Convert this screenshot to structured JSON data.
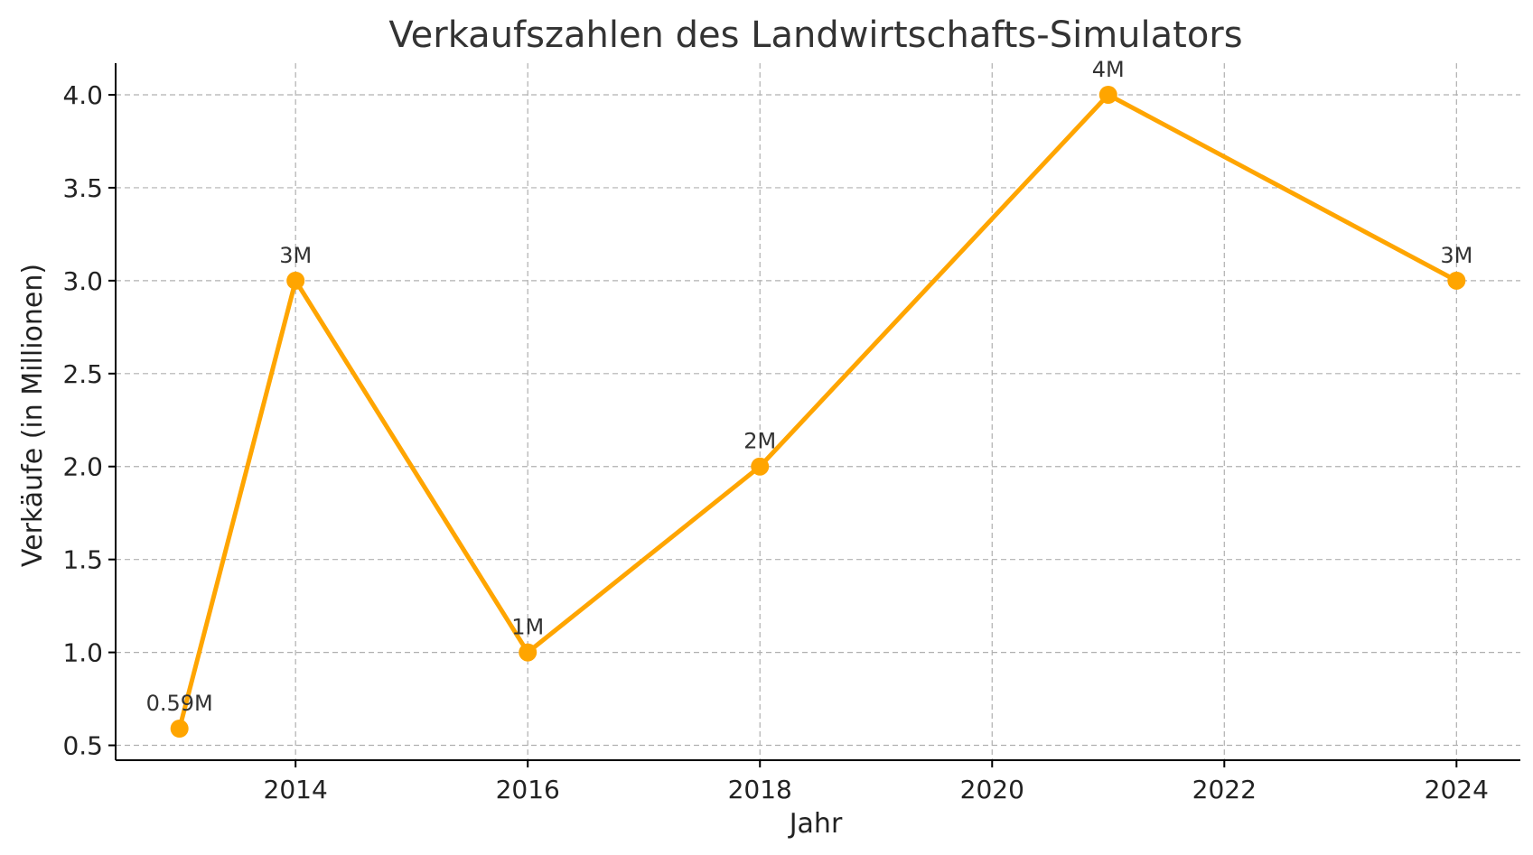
{
  "chart_data": {
    "type": "line",
    "title": "Verkaufszahlen des Landwirtschafts-Simulators",
    "xlabel": "Jahr",
    "ylabel": "Verkäufe (in Millionen)",
    "x": [
      2013,
      2014,
      2016,
      2018,
      2021,
      2024
    ],
    "series": [
      {
        "values": [
          0.59,
          3,
          1,
          2,
          4,
          3
        ],
        "color": "#FFA500"
      }
    ],
    "data_labels": [
      "0.59M",
      "3M",
      "1M",
      "2M",
      "4M",
      "3M"
    ],
    "xlim": [
      2012.45,
      2024.55
    ],
    "ylim": [
      0.42,
      4.17
    ],
    "xticks": [
      2014,
      2016,
      2018,
      2020,
      2022,
      2024
    ],
    "xtick_labels": [
      "2014",
      "2016",
      "2018",
      "2020",
      "2022",
      "2024"
    ],
    "yticks": [
      0.5,
      1.0,
      1.5,
      2.0,
      2.5,
      3.0,
      3.5,
      4.0
    ],
    "ytick_labels": [
      "0.5",
      "1.0",
      "1.5",
      "2.0",
      "2.5",
      "3.0",
      "3.5",
      "4.0"
    ],
    "grid": true,
    "legend": false,
    "marker": "circle"
  }
}
